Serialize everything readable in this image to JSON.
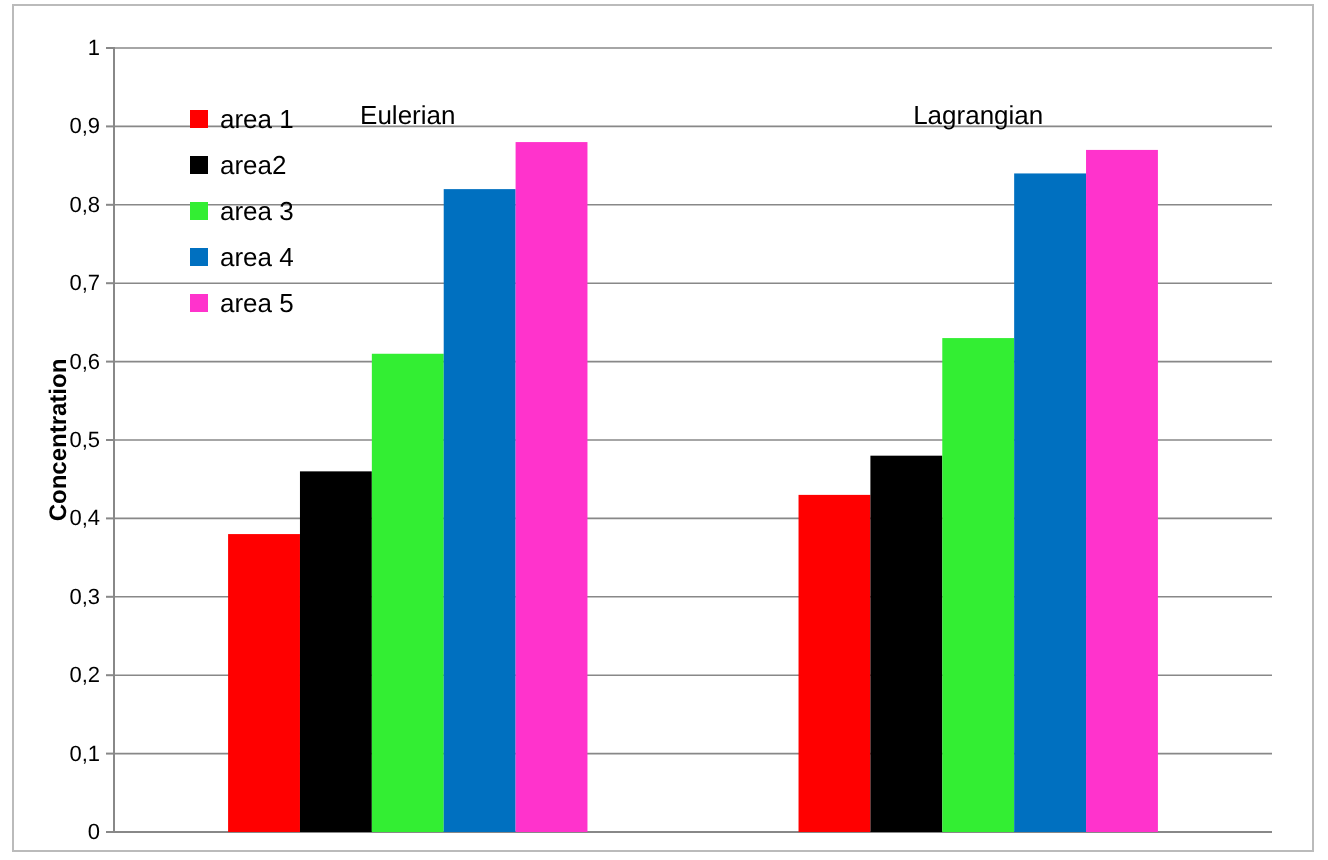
{
  "chart_data": {
    "type": "bar",
    "ylabel": "Concentration",
    "categories": [
      "Eulerian",
      "Lagrangian"
    ],
    "series": [
      {
        "name": "area 1",
        "color": "#ff0000",
        "values": [
          0.38,
          0.43
        ]
      },
      {
        "name": "area2",
        "color": "#000000",
        "values": [
          0.46,
          0.48
        ]
      },
      {
        "name": "area 3",
        "color": "#33ee33",
        "values": [
          0.61,
          0.63
        ]
      },
      {
        "name": "area 4",
        "color": "#0070c0",
        "values": [
          0.82,
          0.84
        ]
      },
      {
        "name": "area 5",
        "color": "#ff33cc",
        "values": [
          0.88,
          0.87
        ]
      }
    ],
    "ylim": [
      0,
      1
    ],
    "yticks": [
      0,
      {
        "value": 0.1,
        "label": "0,1"
      },
      {
        "value": 0.2,
        "label": "0,2"
      },
      {
        "value": 0.3,
        "label": "0,3"
      },
      {
        "value": 0.4,
        "label": "0,4"
      },
      {
        "value": 0.5,
        "label": "0,5"
      },
      {
        "value": 0.6,
        "label": "0,6"
      },
      {
        "value": 0.7,
        "label": "0,7"
      },
      {
        "value": 0.8,
        "label": "0,8"
      },
      {
        "value": 0.9,
        "label": "0,9"
      },
      1
    ],
    "grid": "y",
    "legend": "top left"
  }
}
